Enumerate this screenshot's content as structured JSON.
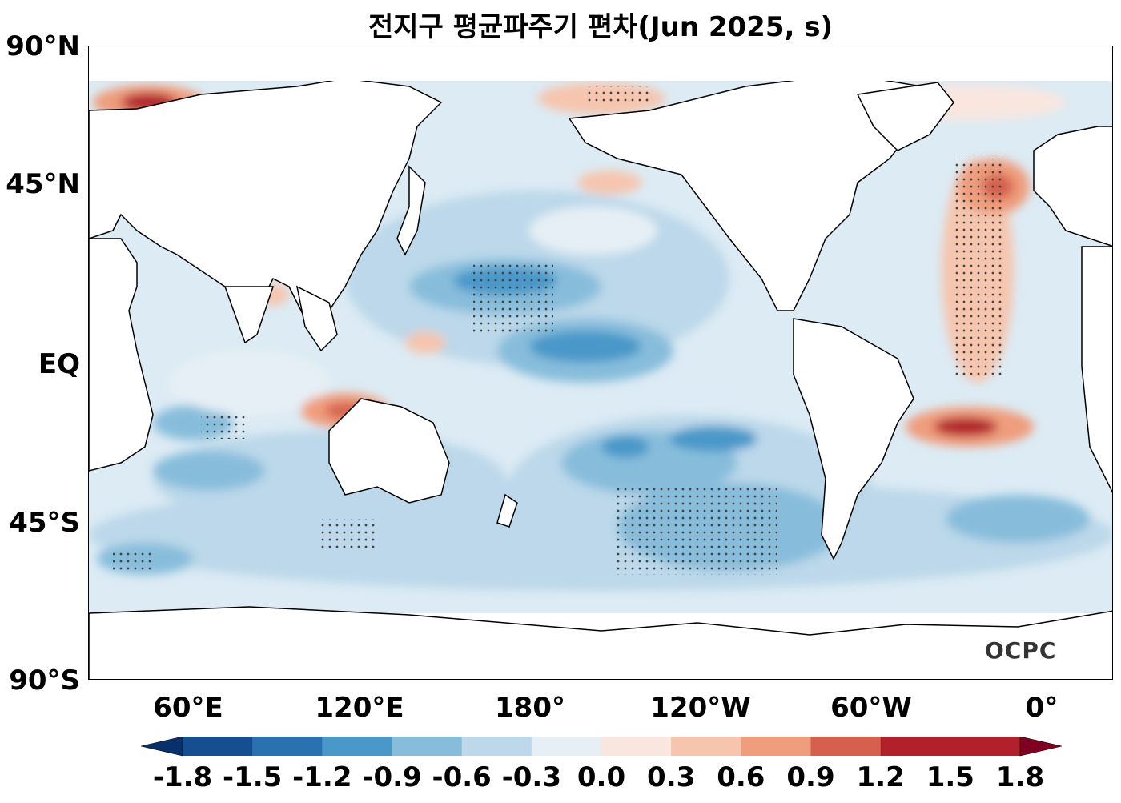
{
  "title": "전지구 평균파주기 편차(Jun 2025, s)",
  "logo": "OCPC",
  "y_axis_labels": [
    "90°N",
    "45°N",
    "EQ",
    "45°S",
    "90°S"
  ],
  "x_axis_labels": [
    "60°E",
    "120°E",
    "180°",
    "120°W",
    "60°W",
    "0°"
  ],
  "colorbar": {
    "ticks": [
      "-1.8",
      "-1.5",
      "-1.2",
      "-0.9",
      "-0.6",
      "-0.3",
      "0.0",
      "0.3",
      "0.6",
      "0.9",
      "1.2",
      "1.5",
      "1.8"
    ],
    "colors": [
      "#08306b",
      "#164f91",
      "#2a71b2",
      "#4a98c9",
      "#87bddb",
      "#bcd8ea",
      "#e6eff5",
      "#f9e6df",
      "#f6c5ae",
      "#ef9d7d",
      "#d6604d",
      "#b2202c",
      "#7f0020"
    ],
    "extend": "both"
  },
  "map_data": {
    "variable": "Mean wave period anomaly",
    "units": "s",
    "period": "Jun 2025",
    "central_longitude": "180°",
    "features": [
      {
        "name": "eastern-equatorial-atlantic-max",
        "value": 1.5
      },
      {
        "name": "north-atlantic-max",
        "value": 1.2
      },
      {
        "name": "barents-sea-max",
        "value": 1.5
      },
      {
        "name": "indian-ocean-off-java-max",
        "value": 0.9
      },
      {
        "name": "north-pacific-min",
        "value": -1.2
      },
      {
        "name": "south-pacific-min",
        "value": -1.2
      }
    ]
  }
}
